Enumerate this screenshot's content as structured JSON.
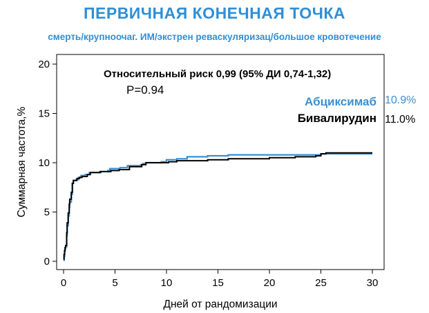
{
  "chart_data": {
    "type": "line",
    "title": "ПЕРВИЧНАЯ КОНЕЧНАЯ ТОЧКА",
    "subtitle": "смерть/крупноочаг. ИМ/экстрен реваскуляризац/большое кровотечение",
    "xlabel": "Дней от рандомизации",
    "ylabel": "Суммарная частота,%",
    "xlim": [
      0,
      30
    ],
    "ylim": [
      0,
      20
    ],
    "xticks": [
      "0",
      "5",
      "10",
      "15",
      "20",
      "25",
      "30"
    ],
    "yticks": [
      "0",
      "5",
      "10",
      "15",
      "20"
    ],
    "annotations": {
      "risk": "Относительный риск 0,99 (95% ДИ 0,74-1,32)",
      "p_value": "P=0.94"
    },
    "series": [
      {
        "name": "Абциксимаб",
        "final_label": "10.9%",
        "color": "#3a8fd0",
        "x": [
          0,
          0.05,
          0.1,
          0.15,
          0.2,
          0.3,
          0.35,
          0.45,
          0.55,
          0.6,
          0.75,
          0.85,
          0.95,
          1.25,
          1.45,
          1.7,
          2.1,
          2.5,
          3.5,
          4.3,
          4.5,
          5.5,
          6.2,
          7.5,
          7.7,
          8.0,
          9.5,
          10.0,
          11.0,
          12.0,
          14.0,
          16.0,
          18.0,
          20.0,
          22.0,
          24.5,
          25.0,
          25.6,
          29.0,
          30.0
        ],
        "y": [
          0.1,
          0.5,
          1.0,
          1.3,
          1.5,
          2.6,
          3.6,
          4.6,
          5.5,
          6.0,
          6.8,
          7.9,
          8.2,
          8.3,
          8.5,
          8.7,
          8.8,
          9.0,
          9.1,
          9.2,
          9.4,
          9.5,
          9.7,
          9.8,
          9.9,
          10.0,
          10.1,
          10.3,
          10.4,
          10.6,
          10.7,
          10.8,
          10.8,
          10.8,
          10.8,
          10.8,
          10.9,
          10.9,
          10.9,
          10.9
        ]
      },
      {
        "name": "Бивалирудин",
        "final_label": "11.0%",
        "color": "#000000",
        "x": [
          0,
          0.05,
          0.1,
          0.15,
          0.2,
          0.3,
          0.35,
          0.45,
          0.55,
          0.6,
          0.75,
          0.85,
          0.95,
          1.3,
          1.55,
          1.8,
          2.3,
          2.6,
          3.6,
          4.6,
          5.4,
          6.4,
          7.6,
          8.0,
          10.2,
          11.0,
          14.0,
          16.0,
          19.0,
          20.0,
          21.5,
          22.5,
          24.0,
          24.5,
          25.0,
          25.5,
          29.0,
          30.0
        ],
        "y": [
          0.2,
          0.7,
          1.1,
          1.4,
          1.6,
          2.9,
          3.9,
          4.9,
          5.8,
          6.3,
          7.0,
          7.9,
          8.2,
          8.4,
          8.5,
          8.6,
          8.8,
          9.0,
          9.1,
          9.2,
          9.3,
          9.6,
          9.8,
          10.0,
          10.1,
          10.2,
          10.3,
          10.4,
          10.4,
          10.5,
          10.5,
          10.6,
          10.6,
          10.7,
          10.9,
          11.0,
          11.0,
          11.0
        ]
      }
    ]
  }
}
